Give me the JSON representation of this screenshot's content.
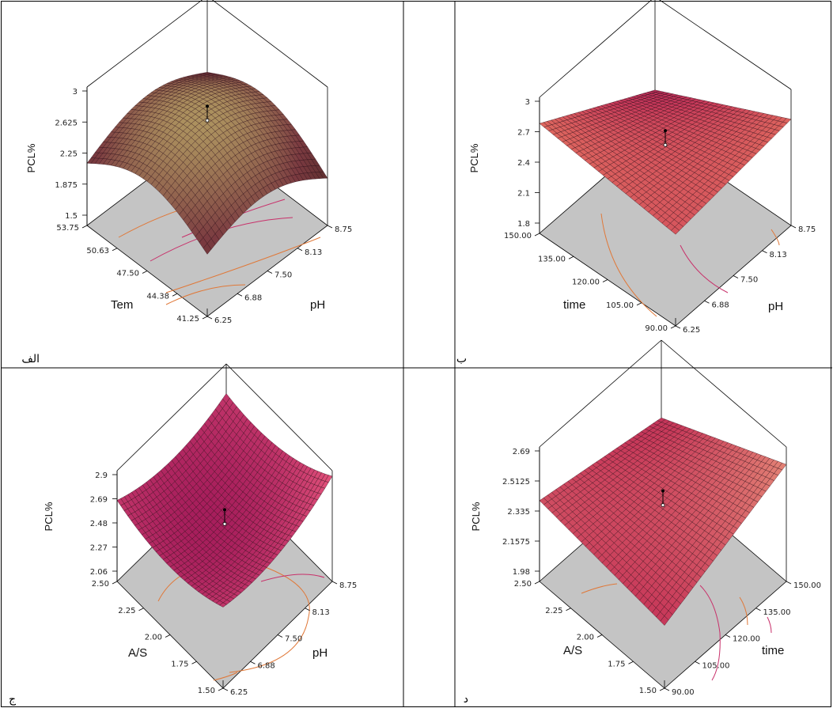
{
  "figure": {
    "panels": [
      {
        "caption": "الف",
        "z_label": "PCL%",
        "x_label": "Tem",
        "y_label": "pH"
      },
      {
        "caption": "ب",
        "z_label": "PCL%",
        "x_label": "time",
        "y_label": "pH"
      },
      {
        "caption": "ج",
        "z_label": "PCL%",
        "x_label": "A/S",
        "y_label": "pH"
      },
      {
        "caption": "د",
        "z_label": "PCL%",
        "x_label": "A/S",
        "y_label": "time"
      }
    ]
  },
  "chart_data": [
    {
      "type": "surface3d",
      "title": "",
      "z_label": "PCL%",
      "x_label": "Tem",
      "y_label": "pH",
      "z_ticks": [
        "3",
        "2.625",
        "2.25",
        "1.875",
        "1.5"
      ],
      "x_ticks": [
        "53.75",
        "50.63",
        "47.50",
        "44.38",
        "41.25"
      ],
      "y_ticks": [
        "8.75",
        "8.13",
        "7.50",
        "6.88",
        "6.25"
      ],
      "zlim": [
        1.5,
        3
      ],
      "surface_colormap": [
        "#2a1a10",
        "#7a3a40",
        "#c8c270"
      ],
      "contour_colors": [
        "#e07838",
        "#c8306a"
      ]
    },
    {
      "type": "surface3d",
      "title": "",
      "z_label": "PCL%",
      "x_label": "time",
      "y_label": "pH",
      "z_ticks": [
        "3",
        "2.7",
        "2.4",
        "2.1",
        "1.8"
      ],
      "x_ticks": [
        "150.00",
        "135.00",
        "120.00",
        "105.00",
        "90.00"
      ],
      "y_ticks": [
        "8.75",
        "8.13",
        "7.50",
        "6.88",
        "6.25"
      ],
      "zlim": [
        1.8,
        3
      ],
      "surface_colormap": [
        "#a01858",
        "#c83a5a",
        "#e87c60"
      ],
      "contour_colors": [
        "#e07838",
        "#c8306a"
      ]
    },
    {
      "type": "surface3d",
      "title": "",
      "z_label": "PCL%",
      "x_label": "A/S",
      "y_label": "pH",
      "z_ticks": [
        "2.9",
        "2.69",
        "2.48",
        "2.27",
        "2.06"
      ],
      "x_ticks": [
        "2.50",
        "2.25",
        "2.00",
        "1.75",
        "1.50"
      ],
      "y_ticks": [
        "8.75",
        "8.13",
        "7.50",
        "6.88",
        "6.25"
      ],
      "zlim": [
        2.06,
        2.9
      ],
      "surface_colormap": [
        "#1a0a10",
        "#a01858",
        "#e0507a"
      ],
      "contour_colors": [
        "#e07838",
        "#c8306a"
      ]
    },
    {
      "type": "surface3d",
      "title": "",
      "z_label": "PCL%",
      "x_label": "A/S",
      "y_label": "time",
      "z_ticks": [
        "2.69",
        "2.5125",
        "2.335",
        "2.1575",
        "1.98"
      ],
      "x_ticks": [
        "2.50",
        "2.25",
        "2.00",
        "1.75",
        "1.50"
      ],
      "y_ticks": [
        "150.00",
        "135.00",
        "120.00",
        "105.00",
        "90.00"
      ],
      "zlim": [
        1.98,
        2.69
      ],
      "surface_colormap": [
        "#a01858",
        "#c83a5a",
        "#e8907a"
      ],
      "contour_colors": [
        "#e07838",
        "#c8306a"
      ]
    }
  ]
}
